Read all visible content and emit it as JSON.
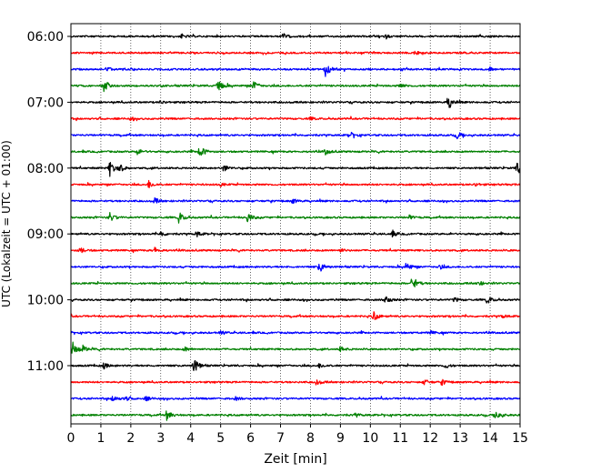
{
  "chart_data": {
    "type": "line",
    "title": "",
    "xlabel": "Zeit  [min]",
    "ylabel": "UTC (Lokalzeit = UTC + 01:00)",
    "xlim": [
      0,
      15
    ],
    "x_ticks": [
      0,
      1,
      2,
      3,
      4,
      5,
      6,
      7,
      8,
      9,
      10,
      11,
      12,
      13,
      14,
      15
    ],
    "x_tick_labels": [
      "0",
      "1",
      "2",
      "3",
      "4",
      "5",
      "6",
      "7",
      "8",
      "9",
      "10",
      "11",
      "12",
      "13",
      "14",
      "15"
    ],
    "y_tick_labels": [
      {
        "time": "06:00",
        "trace": 0
      },
      {
        "time": "07:00",
        "trace": 4
      },
      {
        "time": "08:00",
        "trace": 8
      },
      {
        "time": "09:00",
        "trace": 12
      },
      {
        "time": "10:00",
        "trace": 16
      },
      {
        "time": "11:00",
        "trace": 20
      }
    ],
    "grid": "vertical dotted",
    "colors": [
      "#000000",
      "#ff0000",
      "#0000ff",
      "#008000"
    ],
    "trace_minutes_each": 15,
    "traces": [
      {
        "start": "06:00",
        "color": "#000000",
        "events": [
          [
            3.7,
            0.25
          ],
          [
            7.1,
            0.3
          ],
          [
            10.5,
            0.2
          ]
        ]
      },
      {
        "start": "06:15",
        "color": "#ff0000",
        "events": [
          [
            11.5,
            0.2
          ]
        ]
      },
      {
        "start": "06:30",
        "color": "#0000ff",
        "events": [
          [
            1.2,
            0.3
          ],
          [
            8.5,
            0.9
          ],
          [
            14.0,
            0.25
          ]
        ]
      },
      {
        "start": "06:45",
        "color": "#008000",
        "events": [
          [
            1.1,
            0.9
          ],
          [
            4.9,
            1.0
          ],
          [
            6.1,
            0.6
          ],
          [
            11.0,
            0.25
          ]
        ]
      },
      {
        "start": "07:00",
        "color": "#000000",
        "events": [
          [
            12.6,
            1.0
          ],
          [
            3.0,
            0.2
          ]
        ]
      },
      {
        "start": "07:15",
        "color": "#ff0000",
        "events": [
          [
            2.0,
            0.2
          ],
          [
            8.0,
            0.2
          ]
        ]
      },
      {
        "start": "07:30",
        "color": "#0000ff",
        "events": [
          [
            9.3,
            0.6
          ],
          [
            12.9,
            0.45
          ]
        ]
      },
      {
        "start": "07:45",
        "color": "#008000",
        "events": [
          [
            2.2,
            0.45
          ],
          [
            4.3,
            0.9
          ],
          [
            8.5,
            0.35
          ]
        ]
      },
      {
        "start": "08:00",
        "color": "#000000",
        "events": [
          [
            1.3,
            1.0
          ],
          [
            1.6,
            0.55
          ],
          [
            5.1,
            0.45
          ],
          [
            14.9,
            1.0
          ]
        ]
      },
      {
        "start": "08:15",
        "color": "#ff0000",
        "events": [
          [
            2.6,
            0.5
          ],
          [
            5.0,
            0.2
          ],
          [
            13.5,
            0.2
          ]
        ]
      },
      {
        "start": "08:30",
        "color": "#0000ff",
        "events": [
          [
            2.8,
            0.35
          ],
          [
            7.4,
            0.3
          ]
        ]
      },
      {
        "start": "08:45",
        "color": "#008000",
        "events": [
          [
            1.3,
            0.6
          ],
          [
            3.6,
            0.75
          ],
          [
            5.9,
            0.65
          ],
          [
            11.3,
            0.25
          ]
        ]
      },
      {
        "start": "09:00",
        "color": "#000000",
        "events": [
          [
            3.0,
            0.35
          ],
          [
            4.2,
            0.35
          ],
          [
            10.7,
            0.45
          ]
        ]
      },
      {
        "start": "09:15",
        "color": "#ff0000",
        "events": [
          [
            0.3,
            0.4
          ],
          [
            2.8,
            0.4
          ],
          [
            9.0,
            0.2
          ]
        ]
      },
      {
        "start": "09:30",
        "color": "#0000ff",
        "events": [
          [
            8.3,
            0.75
          ],
          [
            11.2,
            0.6
          ],
          [
            12.3,
            0.3
          ]
        ]
      },
      {
        "start": "09:45",
        "color": "#008000",
        "events": [
          [
            11.4,
            1.0
          ],
          [
            13.6,
            0.3
          ]
        ]
      },
      {
        "start": "10:00",
        "color": "#000000",
        "events": [
          [
            10.5,
            0.6
          ],
          [
            12.8,
            0.3
          ],
          [
            13.9,
            0.55
          ]
        ]
      },
      {
        "start": "10:15",
        "color": "#ff0000",
        "events": [
          [
            10.1,
            0.65
          ],
          [
            14.4,
            0.2
          ]
        ]
      },
      {
        "start": "10:30",
        "color": "#0000ff",
        "events": [
          [
            5.0,
            0.2
          ],
          [
            12.0,
            0.2
          ]
        ]
      },
      {
        "start": "10:45",
        "color": "#008000",
        "events": [
          [
            0.05,
            1.0
          ],
          [
            0.4,
            0.4
          ],
          [
            3.8,
            0.3
          ],
          [
            9.0,
            0.3
          ]
        ]
      },
      {
        "start": "11:00",
        "color": "#000000",
        "events": [
          [
            1.1,
            0.35
          ],
          [
            4.1,
            1.0
          ],
          [
            8.3,
            0.3
          ],
          [
            12.5,
            0.3
          ]
        ]
      },
      {
        "start": "11:15",
        "color": "#ff0000",
        "events": [
          [
            8.2,
            0.35
          ],
          [
            11.8,
            0.35
          ],
          [
            12.4,
            0.3
          ]
        ]
      },
      {
        "start": "11:30",
        "color": "#0000ff",
        "events": [
          [
            1.4,
            0.4
          ],
          [
            1.8,
            0.3
          ],
          [
            2.5,
            0.25
          ],
          [
            5.5,
            0.2
          ]
        ]
      },
      {
        "start": "11:45",
        "color": "#008000",
        "events": [
          [
            3.2,
            0.6
          ],
          [
            14.2,
            0.7
          ],
          [
            9.5,
            0.2
          ]
        ]
      }
    ]
  }
}
